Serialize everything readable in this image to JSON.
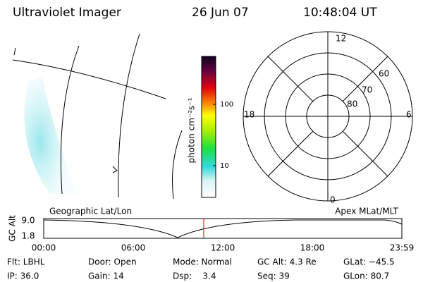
{
  "header": {
    "title": "Ultraviolet Imager",
    "date": "26 Jun 07",
    "time": "10:48:04 UT"
  },
  "colorbar": {
    "label": "photon cm⁻²s⁻¹",
    "ticks": [
      "100",
      "10"
    ]
  },
  "polar": {
    "mlt_labels": [
      "12",
      "18",
      "6",
      "0"
    ],
    "lat_labels": [
      "60",
      "70",
      "80"
    ]
  },
  "orbit": {
    "y_label": "GC Alt",
    "y_ticks": [
      "9.0",
      "1.8"
    ],
    "left_title": "Geographic Lat/Lon",
    "right_title": "Apex MLat/MLT",
    "x_ticks": [
      "00:00",
      "06:00",
      "12:00",
      "18:00",
      "23:59"
    ]
  },
  "info": [
    [
      "Flt: LBHL",
      "Door: Open",
      "Mode: Normal",
      "GC Alt: 4.3 Re",
      "GLat: −45.5"
    ],
    [
      "IP: 36.0",
      "Gain: 14",
      "Dsp:    3.4",
      "Seq: 39",
      "GLon: 80.7"
    ]
  ]
}
